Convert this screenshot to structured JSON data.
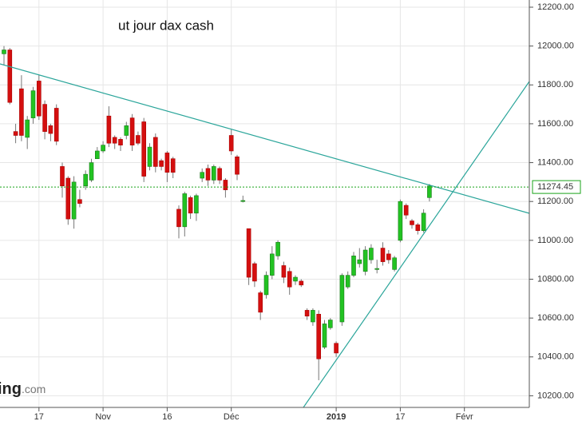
{
  "chart_data": {
    "type": "candlestick",
    "title": "ut jour dax cash",
    "watermark": {
      "brand": "ing",
      "suffix": ".com"
    },
    "categories": [
      null,
      null,
      null,
      null,
      null,
      null,
      "17",
      null,
      null,
      null,
      null,
      null,
      null,
      null,
      null,
      null,
      null,
      "Nov",
      null,
      null,
      null,
      null,
      null,
      null,
      null,
      null,
      null,
      null,
      "16",
      null,
      null,
      null,
      null,
      null,
      null,
      null,
      null,
      null,
      null,
      "Déc",
      null,
      null,
      null,
      null,
      null,
      null,
      null,
      null,
      null,
      null,
      null,
      null,
      null,
      null,
      null,
      null,
      null,
      "2019",
      null,
      null,
      null,
      null,
      null,
      null,
      null,
      null,
      null,
      null,
      "17",
      null,
      null,
      null,
      null,
      null,
      null,
      null,
      null,
      null,
      null,
      "Févr"
    ],
    "open": [
      11960,
      11980,
      11560,
      11780,
      11530,
      11630,
      11820,
      11700,
      11590,
      11680,
      11380,
      11320,
      11110,
      11210,
      11280,
      11310,
      11420,
      11460,
      11640,
      11530,
      11520,
      11540,
      11630,
      11540,
      11610,
      11380,
      11530,
      11410,
      11450,
      11420,
      11160,
      11070,
      11220,
      11140,
      11320,
      11370,
      11310,
      11370,
      11310,
      11540,
      11430,
      11200,
      11060,
      10880,
      10730,
      10720,
      10820,
      10920,
      10870,
      10840,
      10790,
      10790,
      10640,
      10580,
      10620,
      10450,
      10550,
      10470,
      10580,
      10760,
      10820,
      10880,
      10840,
      10900,
      10850,
      10960,
      10930,
      10850,
      11000,
      11180,
      11100,
      11080,
      11050,
      11220,
      null,
      null,
      null,
      null,
      null,
      null
    ],
    "high": [
      12000,
      11990,
      11600,
      11850,
      11640,
      11790,
      11850,
      11720,
      11600,
      11700,
      11400,
      11330,
      11330,
      11260,
      11360,
      11420,
      11480,
      11510,
      11690,
      11540,
      11530,
      11610,
      11650,
      11560,
      11630,
      11500,
      11550,
      11420,
      11460,
      11430,
      11180,
      11250,
      11230,
      11240,
      11370,
      11390,
      11390,
      11380,
      11320,
      11570,
      11440,
      11230,
      11060,
      10890,
      10740,
      10840,
      10970,
      11000,
      10890,
      10860,
      10820,
      10800,
      10650,
      10650,
      10640,
      10590,
      10600,
      10480,
      10830,
      10840,
      10940,
      10960,
      10970,
      10980,
      10900,
      10990,
      10950,
      10920,
      11210,
      11190,
      11110,
      11090,
      11160,
      11290,
      null,
      null,
      null,
      null,
      null,
      null
    ],
    "low": [
      11900,
      11700,
      11500,
      11510,
      11470,
      11600,
      11620,
      11520,
      11510,
      11490,
      11220,
      11080,
      11060,
      11170,
      11260,
      11300,
      11420,
      11450,
      11480,
      11470,
      11460,
      11520,
      11460,
      11490,
      11300,
      11360,
      11350,
      11360,
      11300,
      11320,
      11010,
      11020,
      11110,
      11100,
      11300,
      11280,
      11290,
      11290,
      11220,
      11440,
      11310,
      11195,
      10770,
      10760,
      10590,
      10700,
      10800,
      10900,
      10780,
      10720,
      10770,
      10760,
      10590,
      10560,
      10280,
      10440,
      10540,
      10400,
      10560,
      10750,
      10810,
      10860,
      10820,
      10880,
      10830,
      10870,
      10880,
      10840,
      10990,
      11110,
      11060,
      11030,
      11040,
      11200,
      null,
      null,
      null,
      null,
      null,
      null
    ],
    "close": [
      11980,
      11710,
      11540,
      11540,
      11620,
      11770,
      11640,
      11560,
      11550,
      11510,
      11280,
      11110,
      11300,
      11190,
      11340,
      11400,
      11460,
      11490,
      11500,
      11500,
      11490,
      11590,
      11490,
      11500,
      11330,
      11480,
      11380,
      11380,
      11350,
      11350,
      11070,
      11240,
      11140,
      11230,
      11350,
      11310,
      11380,
      11310,
      11260,
      11460,
      11340,
      11205,
      10810,
      10790,
      10630,
      10820,
      10930,
      10990,
      10810,
      10760,
      10810,
      10770,
      10610,
      10640,
      10390,
      10570,
      10590,
      10420,
      10820,
      10820,
      10920,
      10900,
      10950,
      10960,
      10855,
      10890,
      10900,
      10910,
      11200,
      11130,
      11080,
      11050,
      11140,
      11280,
      null,
      null,
      null,
      null,
      null,
      null
    ],
    "up_color": "#22c322",
    "down_color": "#d40f0f",
    "ylim": [
      10140,
      12237
    ],
    "yticks": [
      {
        "value": 10200,
        "label": "10200.00"
      },
      {
        "value": 10400,
        "label": "10400.00"
      },
      {
        "value": 10600,
        "label": "10600.00"
      },
      {
        "value": 10800,
        "label": "10800.00"
      },
      {
        "value": 11000,
        "label": "11000.00"
      },
      {
        "value": 11200,
        "label": "11200.00"
      },
      {
        "value": 11400,
        "label": "11400.00"
      },
      {
        "value": 11600,
        "label": "11600.00"
      },
      {
        "value": 11800,
        "label": "11800.00"
      },
      {
        "value": 12000,
        "label": "12000.00"
      },
      {
        "value": 12200,
        "label": "12200.00"
      }
    ],
    "last_price": 11274.45,
    "last_price_color": "#19a319",
    "grid": true
  }
}
